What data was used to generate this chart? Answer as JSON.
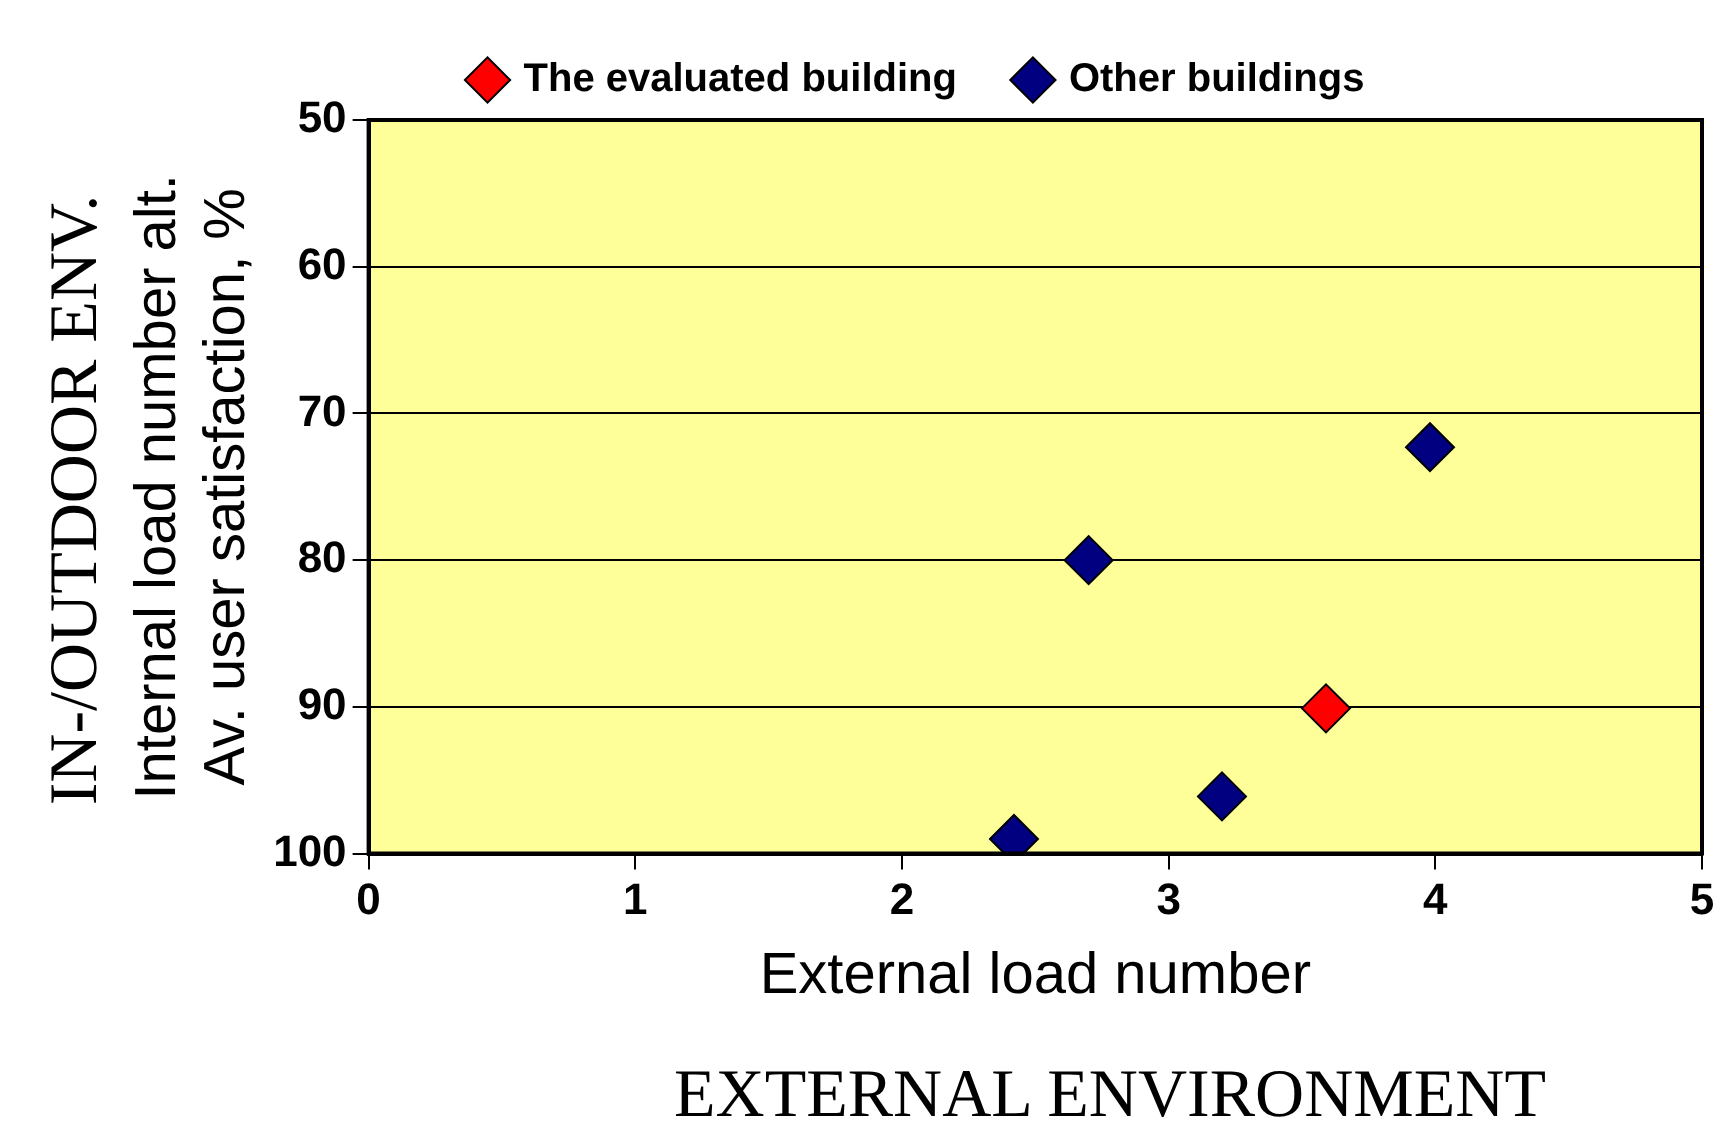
{
  "chart_data": {
    "type": "scatter",
    "xlabel": "External load number",
    "ylabel": "Internal load number alt.\nAv. user satisfaction, %",
    "xlim": [
      0,
      5
    ],
    "xticks": [
      0,
      1,
      2,
      3,
      4,
      5
    ],
    "ylim": [
      100,
      50
    ],
    "yticks": [
      50,
      60,
      70,
      80,
      90,
      100
    ],
    "grid": "y",
    "legend": "top",
    "marker": "diamond",
    "series": [
      {
        "name": "The evaluated building",
        "color": "#ff0000",
        "x": [
          3.59
        ],
        "values": [
          90.1
        ]
      },
      {
        "name": "Other buildings",
        "color": "#000080",
        "x": [
          2.42,
          2.7,
          3.2,
          3.98
        ],
        "values": [
          99.0,
          80.0,
          96.1,
          72.3
        ]
      }
    ],
    "annotations": [
      "IN-/OUTDOOR ENV.",
      "EXTERNAL ENVIRONMENT"
    ]
  }
}
